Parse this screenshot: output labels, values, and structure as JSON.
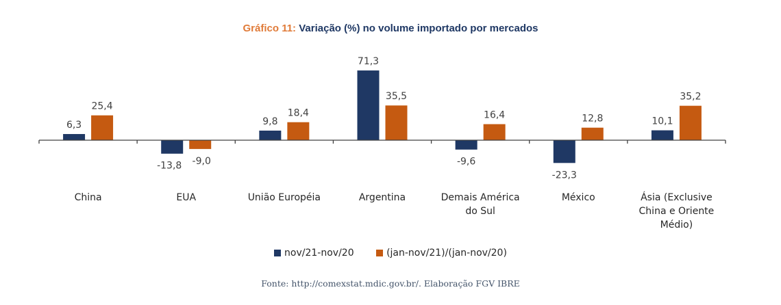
{
  "chart_data": {
    "type": "bar",
    "title_prefix": "Gráfico 11:",
    "title": "Variação (%) no volume importado por mercados",
    "categories": [
      [
        "China"
      ],
      [
        "EUA"
      ],
      [
        "União Européia"
      ],
      [
        "Argentina"
      ],
      [
        "Demais América",
        "do Sul"
      ],
      [
        "México"
      ],
      [
        "Ásia (Exclusive",
        "China e Oriente",
        "Médio)"
      ]
    ],
    "series": [
      {
        "name": "nov/21-nov/20",
        "color": "#1f3864",
        "values": [
          6.3,
          -13.8,
          9.8,
          71.3,
          -9.6,
          -23.3,
          10.1
        ],
        "labels": [
          "6,3",
          "-13,8",
          "9,8",
          "71,3",
          "-9,6",
          "-23,3",
          "10,1"
        ]
      },
      {
        "name": "(jan-nov/21)/(jan-nov/20)",
        "color": "#c55a11",
        "values": [
          25.4,
          -9.0,
          18.4,
          35.5,
          16.4,
          12.8,
          35.2
        ],
        "labels": [
          "25,4",
          "-9,0",
          "18,4",
          "35,5",
          "16,4",
          "12,8",
          "35,2"
        ]
      }
    ],
    "xlabel": "",
    "ylabel": "",
    "y_axis_visible": false,
    "grid": false,
    "legend_position": "bottom",
    "data_labels": true
  },
  "source": "Fonte: http://comexstat.mdic.gov.br/. Elaboração FGV IBRE"
}
